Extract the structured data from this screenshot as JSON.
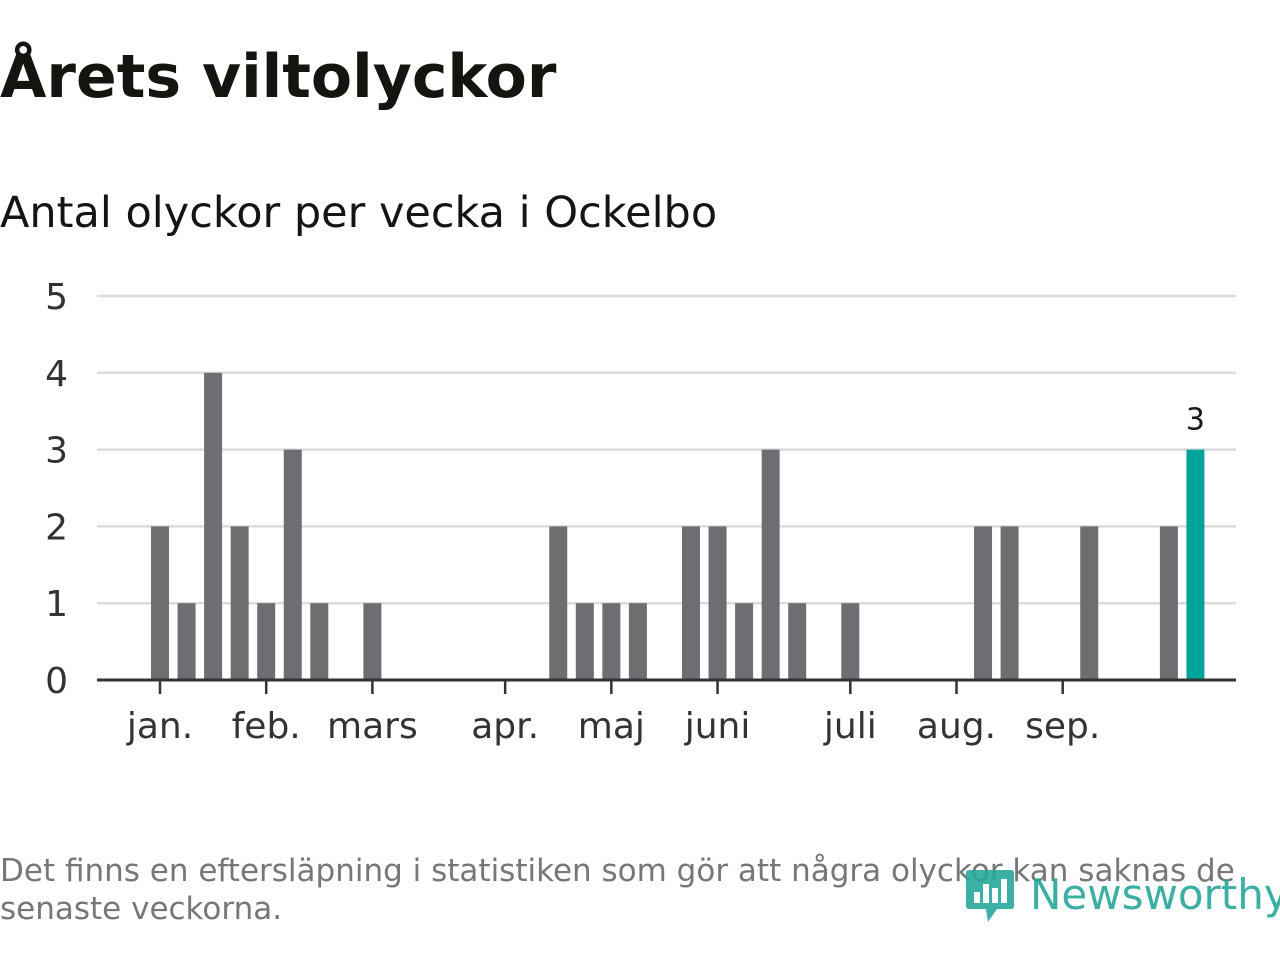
{
  "header": {
    "title": "Årets viltolyckor",
    "subtitle": "Antal olyckor per vecka i Ockelbo"
  },
  "chart_data": {
    "type": "bar",
    "title": "Årets viltolyckor",
    "subtitle": "Antal olyckor per vecka i Ockelbo",
    "xlabel": "",
    "ylabel": "",
    "ylim": [
      0,
      5
    ],
    "yticks": [
      0,
      1,
      2,
      3,
      4,
      5
    ],
    "grid": true,
    "weeks": [
      1,
      2,
      3,
      4,
      5,
      6,
      7,
      8,
      9,
      10,
      11,
      12,
      13,
      14,
      15,
      16,
      17,
      18,
      19,
      20,
      21,
      22,
      23,
      24,
      25,
      26,
      27,
      28,
      29,
      30,
      31,
      32,
      33,
      34,
      35,
      36,
      37,
      38,
      39,
      40
    ],
    "values": [
      2,
      1,
      4,
      2,
      1,
      3,
      1,
      0,
      1,
      0,
      0,
      0,
      0,
      0,
      0,
      2,
      1,
      1,
      1,
      0,
      2,
      2,
      1,
      3,
      1,
      0,
      1,
      0,
      0,
      0,
      0,
      2,
      2,
      0,
      0,
      2,
      0,
      0,
      2,
      3
    ],
    "last_value": 3,
    "last_value_label": "3",
    "month_ticks": [
      {
        "label": "jan.",
        "week": 1
      },
      {
        "label": "feb.",
        "week": 5
      },
      {
        "label": "mars",
        "week": 9
      },
      {
        "label": "apr.",
        "week": 14
      },
      {
        "label": "maj",
        "week": 18
      },
      {
        "label": "juni",
        "week": 22
      },
      {
        "label": "juli",
        "week": 27
      },
      {
        "label": "aug.",
        "week": 31
      },
      {
        "label": "sep.",
        "week": 35
      }
    ],
    "colors": {
      "bar": "#6e6d72",
      "highlight": "#00a49a",
      "grid": "#dcdcdc",
      "axis": "#333333"
    }
  },
  "footer": {
    "note": "Det finns en eftersläpning i statistiken som gör att några olyckor kan saknas de senaste veckorna.",
    "brand": "Newsworthy",
    "brand_icon": "newsworthy-chart-bubble-icon",
    "brand_color": "#27a79a"
  }
}
